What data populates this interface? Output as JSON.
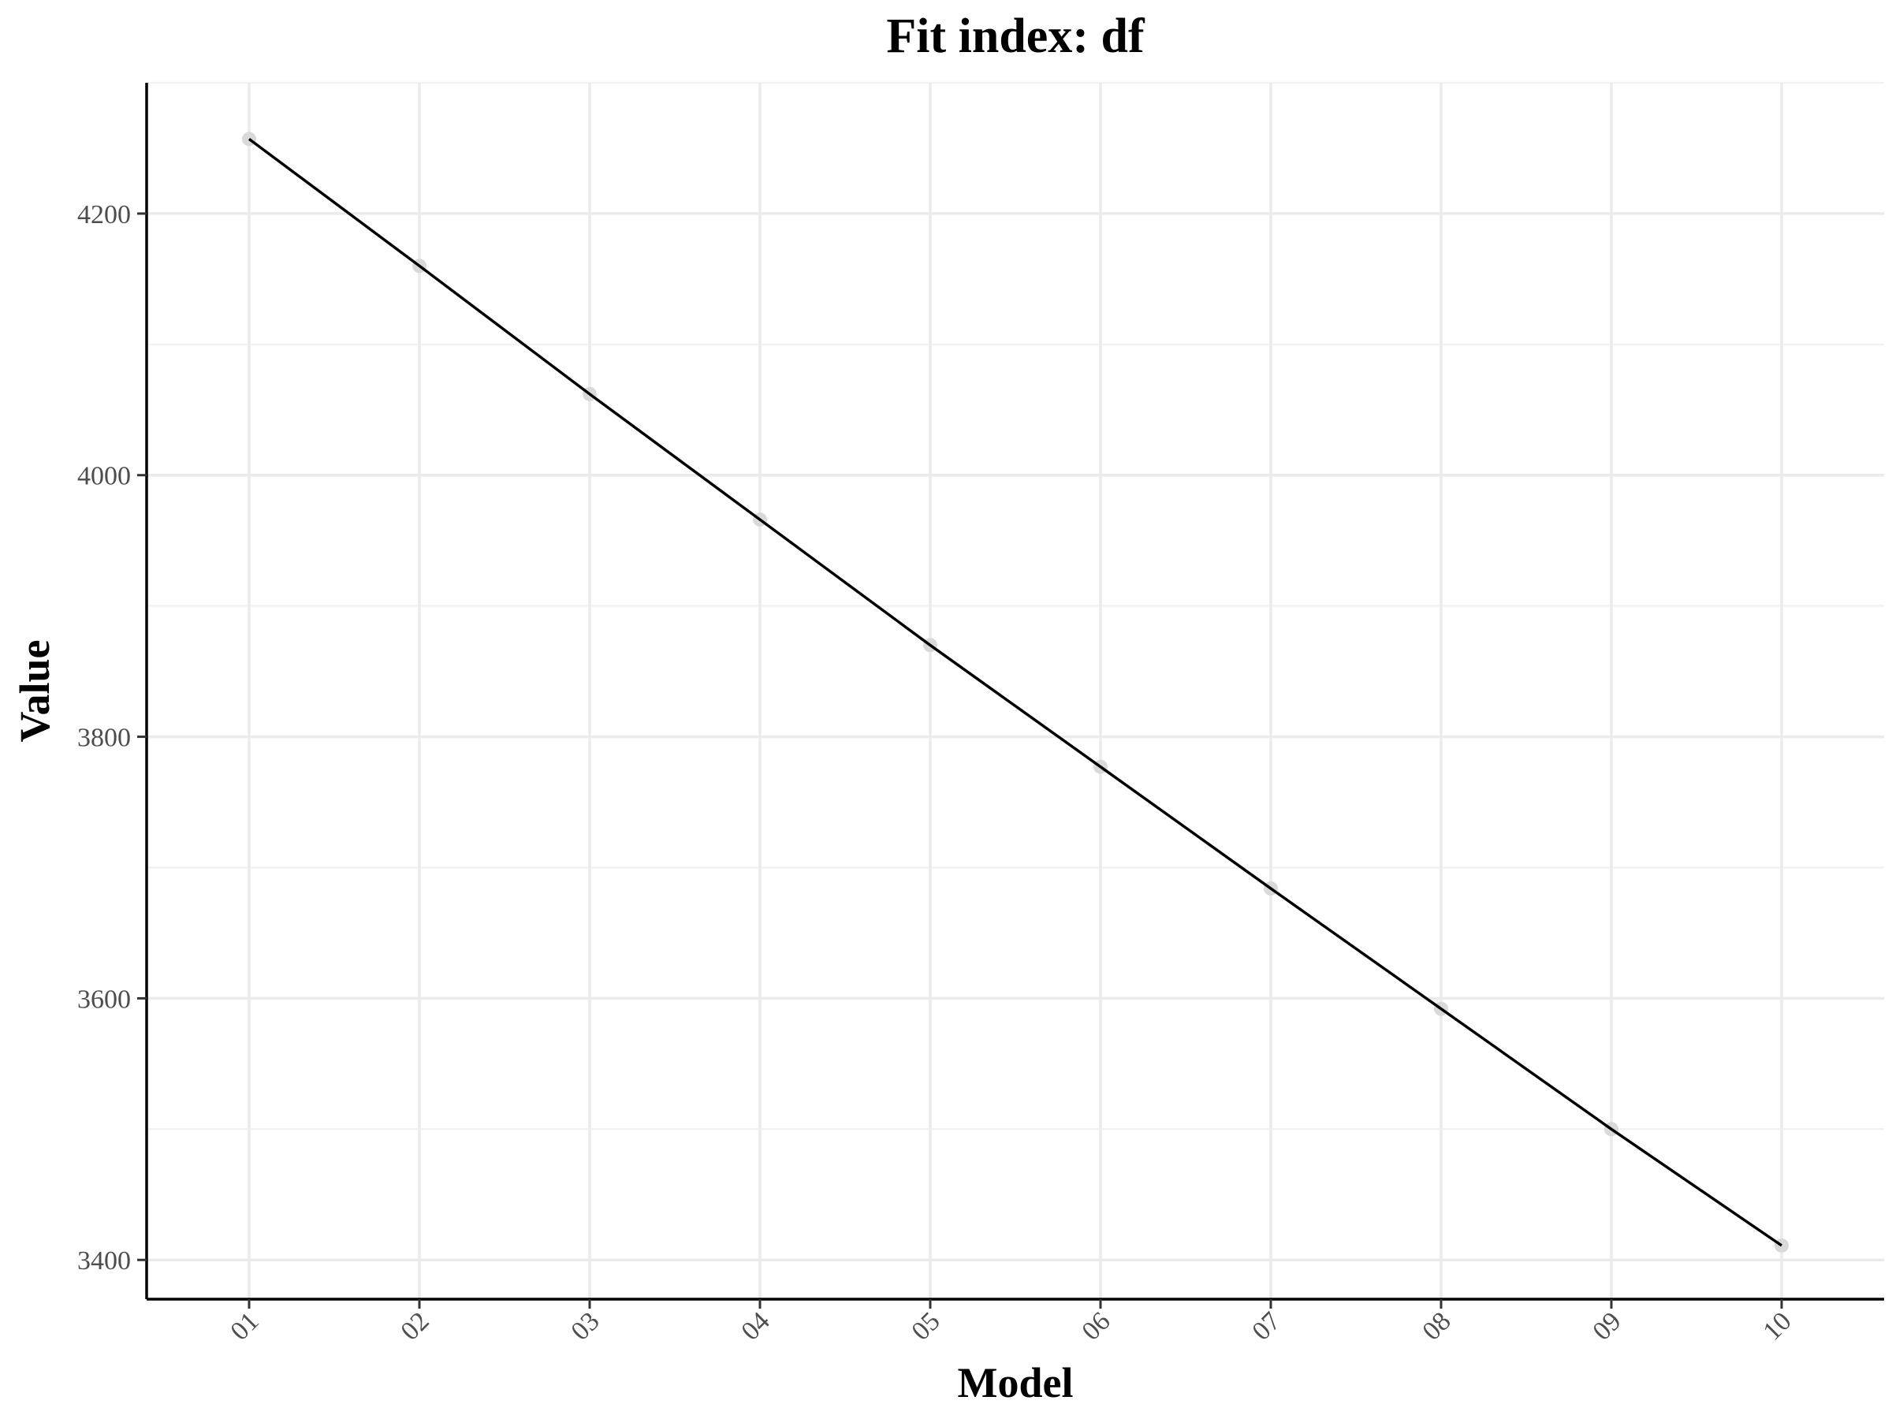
{
  "chart_data": {
    "type": "line",
    "title": "Fit index: df",
    "xlabel": "Model",
    "ylabel": "Value",
    "categories": [
      "01",
      "02",
      "03",
      "04",
      "05",
      "06",
      "07",
      "08",
      "09",
      "10"
    ],
    "series": [
      {
        "values": [
          4257,
          4160,
          4062,
          3966,
          3870,
          3777,
          3684,
          3592,
          3500,
          3411
        ]
      }
    ],
    "ylim": [
      3370,
      4300
    ],
    "yticks": [
      3400,
      3600,
      3800,
      4000,
      4200
    ],
    "ytick_labels": [
      "3400",
      "3600",
      "3800",
      "4000",
      "4200"
    ],
    "grid": true,
    "legend": "none",
    "colors": {
      "line": "#000000",
      "point": "#d9d9d9",
      "grid": "#ebebeb"
    }
  }
}
